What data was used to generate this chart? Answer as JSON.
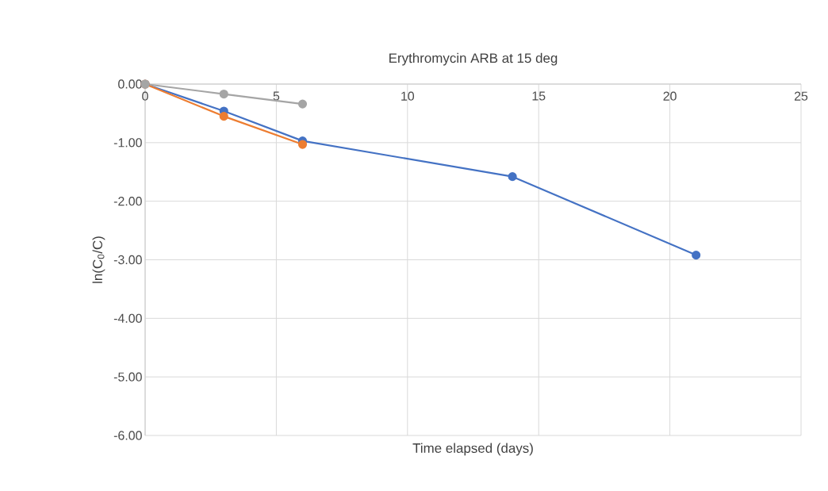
{
  "chart_data": {
    "type": "line",
    "title": "Erythromycin ARB at 15 deg",
    "xlabel": "Time elapsed (days)",
    "ylabel": "ln(C$_{0}$/C)",
    "series": [
      {
        "color": "#4472c4",
        "x": [
          0,
          3,
          6,
          14,
          21
        ],
        "values": [
          0,
          -0.46,
          -0.97,
          -1.58,
          -2.92
        ]
      },
      {
        "color": "#ed7d31",
        "x": [
          0,
          3,
          6
        ],
        "values": [
          0,
          -0.55,
          -1.03
        ]
      },
      {
        "color": "#a5a5a5",
        "x": [
          0,
          3,
          6
        ],
        "values": [
          0,
          -0.17,
          -0.34
        ]
      }
    ],
    "xlim": [
      0,
      25
    ],
    "xticks": [
      0,
      5,
      10,
      15,
      20,
      25
    ],
    "ylim": [
      -6,
      0
    ],
    "yticks": [
      {
        "value": -6,
        "label": "-6.00"
      },
      {
        "value": -5,
        "label": "-5.00"
      },
      {
        "value": -4,
        "label": "-4.00"
      },
      {
        "value": -3,
        "label": "-3.00"
      },
      {
        "value": -2,
        "label": "-2.00"
      },
      {
        "value": -1,
        "label": "-1.00"
      },
      {
        "value": 0,
        "label": "0.00"
      }
    ],
    "grid": true,
    "marker": "circle",
    "line_style": "solid"
  }
}
